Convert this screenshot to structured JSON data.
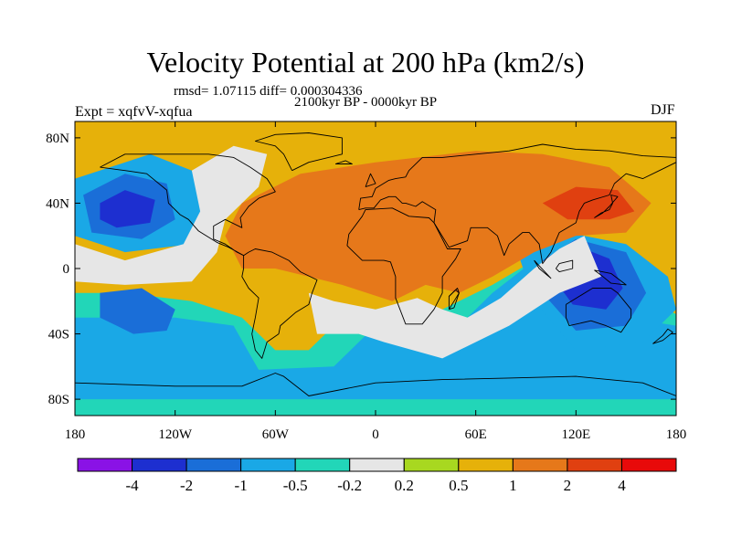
{
  "title": "Velocity Potential at 200 hPa (km2/s)",
  "stats": "rmsd= 1.07115 diff= 0.000304336",
  "period": "2100kyr BP - 0000kyr BP",
  "experiment": "Expt = xqfvV-xqfua",
  "season": "DJF",
  "lat_ticks": [
    "80N",
    "40N",
    "0",
    "40S",
    "80S"
  ],
  "lon_ticks": [
    "180",
    "120W",
    "60W",
    "0",
    "60E",
    "120E",
    "180"
  ],
  "colorbar": {
    "colors": [
      "#8a12e6",
      "#1d2fd0",
      "#1a6ed8",
      "#1aa8e6",
      "#22d6b8",
      "#e6e6e6",
      "#a8d820",
      "#e6b10a",
      "#e6781a",
      "#e04010",
      "#e80a0a"
    ],
    "labels": [
      "-4",
      "-2",
      "-1",
      "-0.5",
      "-0.2",
      "0.2",
      "0.5",
      "1",
      "2",
      "4"
    ]
  },
  "map": {
    "background": "#e6b10a",
    "regions": [
      {
        "color": "#22d6b8",
        "lon_lat": [
          [
            -180,
            -90
          ],
          [
            180,
            -90
          ],
          [
            180,
            -28
          ],
          [
            150,
            -10
          ],
          [
            130,
            10
          ],
          [
            100,
            8
          ],
          [
            70,
            -10
          ],
          [
            40,
            -25
          ],
          [
            20,
            -20
          ],
          [
            0,
            -25
          ],
          [
            -20,
            -30
          ],
          [
            -40,
            -50
          ],
          [
            -60,
            -50
          ],
          [
            -80,
            -30
          ],
          [
            -110,
            -20
          ],
          [
            -150,
            -15
          ],
          [
            -180,
            -15
          ]
        ]
      },
      {
        "color": "#1aa8e6",
        "lon_lat": [
          [
            -180,
            -80
          ],
          [
            180,
            -80
          ],
          [
            180,
            -35
          ],
          [
            150,
            -30
          ],
          [
            120,
            -5
          ],
          [
            95,
            5
          ],
          [
            70,
            -15
          ],
          [
            45,
            -40
          ],
          [
            25,
            -35
          ],
          [
            0,
            -35
          ],
          [
            -25,
            -60
          ],
          [
            -70,
            -62
          ],
          [
            -85,
            -35
          ],
          [
            -120,
            -30
          ],
          [
            -180,
            -30
          ]
        ]
      },
      {
        "color": "#1aa8e6",
        "lon_lat": [
          [
            -180,
            55
          ],
          [
            -135,
            70
          ],
          [
            -110,
            60
          ],
          [
            -100,
            40
          ],
          [
            -110,
            15
          ],
          [
            -150,
            10
          ],
          [
            -180,
            20
          ]
        ]
      },
      {
        "color": "#1a6ed8",
        "lon_lat": [
          [
            -175,
            45
          ],
          [
            -150,
            58
          ],
          [
            -125,
            52
          ],
          [
            -120,
            30
          ],
          [
            -140,
            18
          ],
          [
            -170,
            22
          ]
        ]
      },
      {
        "color": "#1d2fd0",
        "lon_lat": [
          [
            -165,
            40
          ],
          [
            -150,
            48
          ],
          [
            -132,
            42
          ],
          [
            -135,
            28
          ],
          [
            -155,
            25
          ],
          [
            -165,
            30
          ]
        ]
      },
      {
        "color": "#1a6ed8",
        "lon_lat": [
          [
            -165,
            -15
          ],
          [
            -140,
            -12
          ],
          [
            -120,
            -25
          ],
          [
            -125,
            -38
          ],
          [
            -145,
            -40
          ],
          [
            -165,
            -30
          ]
        ]
      },
      {
        "color": "#1aa8e6",
        "lon_lat": [
          [
            85,
            10
          ],
          [
            115,
            22
          ],
          [
            150,
            15
          ],
          [
            175,
            -5
          ],
          [
            180,
            -25
          ],
          [
            160,
            -45
          ],
          [
            120,
            -50
          ],
          [
            95,
            -20
          ]
        ]
      },
      {
        "color": "#1a6ed8",
        "lon_lat": [
          [
            100,
            5
          ],
          [
            120,
            18
          ],
          [
            150,
            10
          ],
          [
            162,
            -15
          ],
          [
            150,
            -35
          ],
          [
            120,
            -38
          ],
          [
            100,
            -15
          ]
        ]
      },
      {
        "color": "#1d2fd0",
        "lon_lat": [
          [
            110,
            0
          ],
          [
            125,
            12
          ],
          [
            140,
            6
          ],
          [
            148,
            -12
          ],
          [
            138,
            -25
          ],
          [
            118,
            -22
          ],
          [
            108,
            -8
          ]
        ]
      },
      {
        "color": "#e6e6e6",
        "lon_lat": [
          [
            -110,
            60
          ],
          [
            -85,
            75
          ],
          [
            -65,
            70
          ],
          [
            -70,
            50
          ],
          [
            -90,
            30
          ],
          [
            -95,
            10
          ],
          [
            -110,
            -8
          ],
          [
            -150,
            -10
          ],
          [
            -180,
            -8
          ],
          [
            -180,
            15
          ],
          [
            -150,
            5
          ],
          [
            -115,
            15
          ],
          [
            -105,
            35
          ]
        ]
      },
      {
        "color": "#e6e6e6",
        "lon_lat": [
          [
            -40,
            -15
          ],
          [
            -25,
            -20
          ],
          [
            0,
            -25
          ],
          [
            25,
            -18
          ],
          [
            40,
            -25
          ],
          [
            55,
            -30
          ],
          [
            75,
            -18
          ],
          [
            95,
            0
          ],
          [
            110,
            12
          ],
          [
            125,
            20
          ],
          [
            135,
            -5
          ],
          [
            110,
            -15
          ],
          [
            80,
            -35
          ],
          [
            40,
            -55
          ],
          [
            5,
            -45
          ],
          [
            -10,
            -40
          ],
          [
            -35,
            -40
          ]
        ]
      },
      {
        "color": "#e6781a",
        "lon_lat": [
          [
            -80,
            40
          ],
          [
            -45,
            58
          ],
          [
            0,
            65
          ],
          [
            60,
            72
          ],
          [
            100,
            70
          ],
          [
            140,
            62
          ],
          [
            165,
            40
          ],
          [
            150,
            22
          ],
          [
            120,
            20
          ],
          [
            95,
            10
          ],
          [
            70,
            -5
          ],
          [
            50,
            -15
          ],
          [
            30,
            -10
          ],
          [
            10,
            -20
          ],
          [
            -20,
            -10
          ],
          [
            -40,
            -5
          ],
          [
            -60,
            0
          ],
          [
            -80,
            0
          ],
          [
            -90,
            20
          ]
        ]
      },
      {
        "color": "#e04010",
        "lon_lat": [
          [
            100,
            40
          ],
          [
            120,
            50
          ],
          [
            145,
            48
          ],
          [
            155,
            35
          ],
          [
            140,
            30
          ],
          [
            115,
            30
          ]
        ]
      }
    ],
    "coastlines": [
      [
        [
          -165,
          62
        ],
        [
          -150,
          70
        ],
        [
          -125,
          70
        ],
        [
          -100,
          70
        ],
        [
          -85,
          68
        ],
        [
          -75,
          62
        ],
        [
          -65,
          55
        ],
        [
          -60,
          47
        ],
        [
          -70,
          43
        ],
        [
          -76,
          38
        ],
        [
          -81,
          31
        ],
        [
          -80,
          25
        ],
        [
          -90,
          30
        ],
        [
          -97,
          26
        ],
        [
          -97,
          18
        ],
        [
          -90,
          15
        ],
        [
          -83,
          10
        ],
        [
          -79,
          8
        ],
        [
          -88,
          13
        ],
        [
          -95,
          16
        ],
        [
          -106,
          23
        ],
        [
          -112,
          30
        ],
        [
          -117,
          33
        ],
        [
          -124,
          40
        ],
        [
          -125,
          48
        ],
        [
          -137,
          58
        ],
        [
          -150,
          60
        ],
        [
          -165,
          62
        ]
      ],
      [
        [
          -79,
          8
        ],
        [
          -76,
          10
        ],
        [
          -72,
          12
        ],
        [
          -62,
          10
        ],
        [
          -52,
          5
        ],
        [
          -45,
          -2
        ],
        [
          -35,
          -7
        ],
        [
          -38,
          -15
        ],
        [
          -40,
          -22
        ],
        [
          -48,
          -27
        ],
        [
          -57,
          -35
        ],
        [
          -58,
          -40
        ],
        [
          -65,
          -45
        ],
        [
          -68,
          -55
        ],
        [
          -72,
          -50
        ],
        [
          -74,
          -40
        ],
        [
          -72,
          -30
        ],
        [
          -70,
          -18
        ],
        [
          -76,
          -12
        ],
        [
          -80,
          -5
        ],
        [
          -79,
          0
        ],
        [
          -79,
          8
        ]
      ],
      [
        [
          -17,
          14
        ],
        [
          -16,
          21
        ],
        [
          -8,
          32
        ],
        [
          -6,
          36
        ],
        [
          10,
          37
        ],
        [
          20,
          32
        ],
        [
          32,
          31
        ],
        [
          35,
          28
        ],
        [
          43,
          12
        ],
        [
          51,
          12
        ],
        [
          48,
          6
        ],
        [
          40,
          -5
        ],
        [
          40,
          -15
        ],
        [
          35,
          -25
        ],
        [
          28,
          -34
        ],
        [
          18,
          -34
        ],
        [
          12,
          -18
        ],
        [
          12,
          -5
        ],
        [
          9,
          4
        ],
        [
          5,
          5
        ],
        [
          -8,
          5
        ],
        [
          -17,
          14
        ]
      ],
      [
        [
          -10,
          36
        ],
        [
          -9,
          43
        ],
        [
          -2,
          44
        ],
        [
          0,
          49
        ],
        [
          8,
          54
        ],
        [
          12,
          55
        ],
        [
          18,
          56
        ],
        [
          20,
          60
        ],
        [
          28,
          68
        ],
        [
          40,
          68
        ],
        [
          60,
          70
        ],
        [
          80,
          72
        ],
        [
          100,
          76
        ],
        [
          120,
          73
        ],
        [
          140,
          72
        ],
        [
          160,
          69
        ],
        [
          180,
          68
        ],
        [
          180,
          65
        ],
        [
          170,
          60
        ],
        [
          160,
          55
        ],
        [
          150,
          58
        ],
        [
          143,
          52
        ],
        [
          140,
          45
        ],
        [
          130,
          42
        ],
        [
          125,
          40
        ],
        [
          122,
          35
        ],
        [
          120,
          28
        ],
        [
          110,
          22
        ],
        [
          105,
          10
        ],
        [
          100,
          3
        ],
        [
          98,
          15
        ],
        [
          92,
          22
        ],
        [
          88,
          22
        ],
        [
          80,
          15
        ],
        [
          77,
          8
        ],
        [
          73,
          20
        ],
        [
          67,
          25
        ],
        [
          57,
          25
        ],
        [
          55,
          17
        ],
        [
          44,
          13
        ],
        [
          35,
          28
        ],
        [
          36,
          36
        ],
        [
          28,
          41
        ],
        [
          24,
          38
        ],
        [
          18,
          40
        ],
        [
          16,
          40
        ],
        [
          12,
          44
        ],
        [
          8,
          44
        ],
        [
          3,
          42
        ],
        [
          -1,
          37
        ],
        [
          -6,
          37
        ],
        [
          -10,
          36
        ]
      ],
      [
        [
          114,
          -22
        ],
        [
          114,
          -30
        ],
        [
          116,
          -35
        ],
        [
          129,
          -32
        ],
        [
          138,
          -35
        ],
        [
          147,
          -39
        ],
        [
          153,
          -30
        ],
        [
          153,
          -25
        ],
        [
          145,
          -15
        ],
        [
          141,
          -12
        ],
        [
          136,
          -12
        ],
        [
          130,
          -12
        ],
        [
          122,
          -17
        ],
        [
          114,
          -22
        ]
      ],
      [
        [
          -50,
          60
        ],
        [
          -40,
          65
        ],
        [
          -20,
          70
        ],
        [
          -20,
          80
        ],
        [
          -40,
          83
        ],
        [
          -60,
          82
        ],
        [
          -72,
          78
        ],
        [
          -60,
          75
        ],
        [
          -55,
          70
        ],
        [
          -50,
          60
        ]
      ],
      [
        [
          -180,
          -70
        ],
        [
          -120,
          -72
        ],
        [
          -80,
          -72
        ],
        [
          -60,
          -64
        ],
        [
          -55,
          -66
        ],
        [
          -40,
          -78
        ],
        [
          0,
          -70
        ],
        [
          40,
          -68
        ],
        [
          80,
          -67
        ],
        [
          120,
          -66
        ],
        [
          160,
          -70
        ],
        [
          180,
          -78
        ]
      ],
      [
        [
          131,
          31
        ],
        [
          135,
          34
        ],
        [
          140,
          36
        ],
        [
          142,
          40
        ],
        [
          141,
          45
        ],
        [
          145,
          44
        ],
        [
          140,
          38
        ],
        [
          136,
          34
        ],
        [
          131,
          31
        ]
      ],
      [
        [
          -6,
          50
        ],
        [
          -3,
          58
        ],
        [
          0,
          52
        ],
        [
          -6,
          50
        ]
      ],
      [
        [
          44,
          -25
        ],
        [
          50,
          -15
        ],
        [
          49,
          -12
        ],
        [
          44,
          -17
        ],
        [
          44,
          -25
        ]
      ],
      [
        [
          95,
          5
        ],
        [
          105,
          -6
        ],
        [
          98,
          0
        ],
        [
          95,
          5
        ]
      ],
      [
        [
          108,
          0
        ],
        [
          110,
          3
        ],
        [
          118,
          5
        ],
        [
          118,
          0
        ],
        [
          110,
          -2
        ],
        [
          108,
          0
        ]
      ],
      [
        [
          131,
          -1
        ],
        [
          141,
          -3
        ],
        [
          150,
          -10
        ],
        [
          141,
          -9
        ],
        [
          135,
          -4
        ],
        [
          131,
          -1
        ]
      ],
      [
        [
          166,
          -46
        ],
        [
          172,
          -41
        ],
        [
          175,
          -37
        ],
        [
          178,
          -39
        ],
        [
          172,
          -44
        ],
        [
          166,
          -46
        ]
      ],
      [
        [
          -24,
          64
        ],
        [
          -14,
          64
        ],
        [
          -18,
          66
        ],
        [
          -24,
          64
        ]
      ],
      [
        [
          44,
          -25
        ],
        [
          47,
          -24
        ],
        [
          50,
          -15
        ],
        [
          48,
          -13
        ],
        [
          44,
          -17
        ]
      ]
    ]
  }
}
